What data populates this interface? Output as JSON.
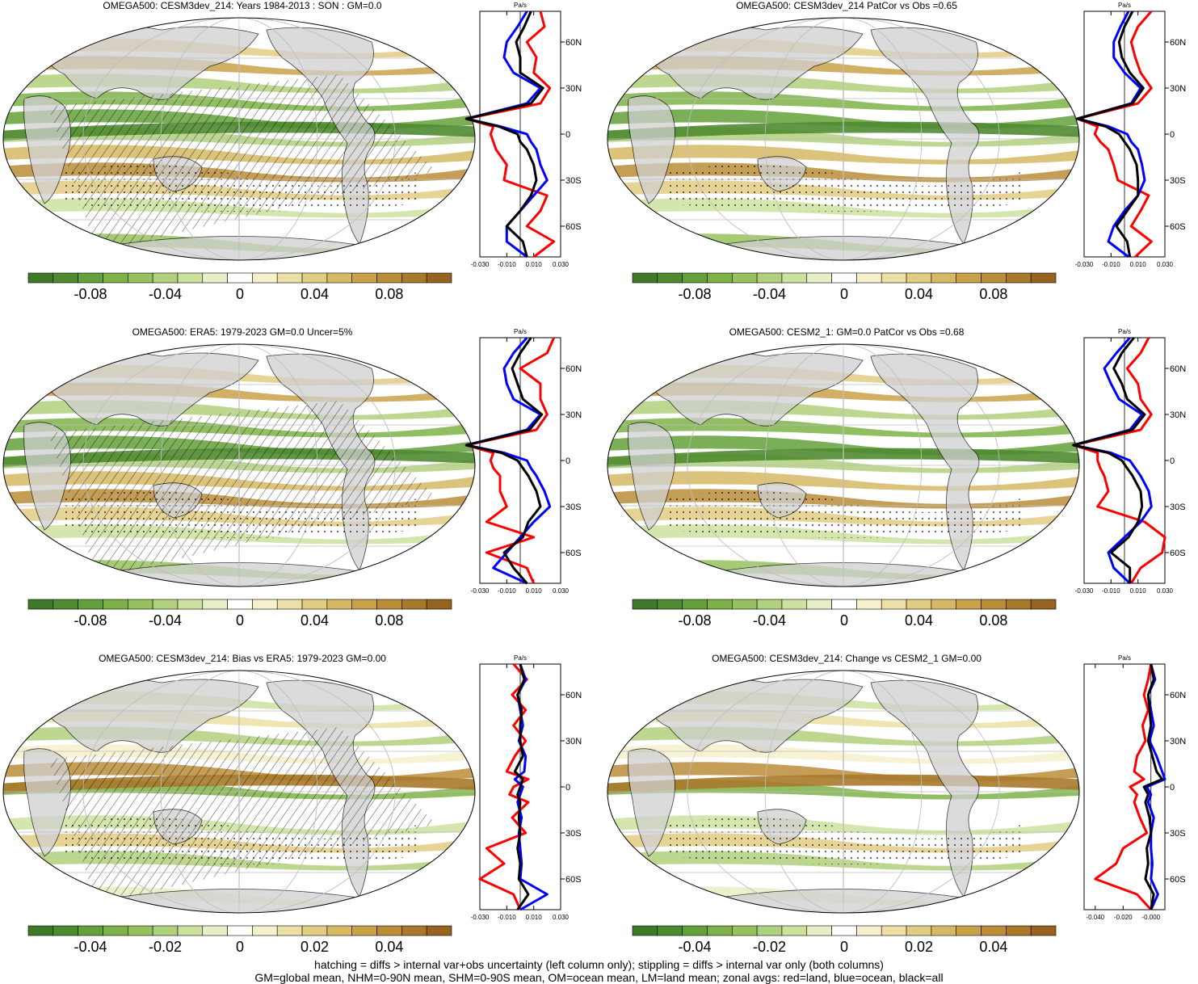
{
  "colors": {
    "ocean": "#ffffff",
    "land": "#cfcfcf",
    "grid": "#bdbdbd",
    "scale": [
      "#3f7a2a",
      "#4f8b31",
      "#63a03a",
      "#7eb148",
      "#97c15e",
      "#b1d07e",
      "#cde19f",
      "#e6efc7",
      "#ffffff",
      "#f6f0cb",
      "#ece0a6",
      "#e1cd84",
      "#d6b865",
      "#c9a24b",
      "#ba8d39",
      "#a9792b",
      "#966320"
    ],
    "land_series": "#ff0000",
    "ocean_series": "#0000ff",
    "all_series": "#000000"
  },
  "footer": {
    "line1": "hatching = diffs > internal var+obs uncertainty (left column only); stippling = diffs > internal var only (both columns)",
    "line2": "GM=global mean, NHM=0-90N mean, SHM=0-90S mean, OM=ocean mean, LM=land mean; zonal avgs: red=land, blue=ocean, black=all"
  },
  "panels": [
    {
      "title": "OMEGA500: CESM3dev_214: Years 1984-2013 : SON : GM=0.0",
      "hatched": true,
      "colorbar_labels": [
        "-0.08",
        "-0.04",
        "0",
        "0.04",
        "0.08"
      ],
      "chart_data": {
        "type": "line",
        "xunit": "Pa/s",
        "xticks": [
          "-0.030",
          "-0.010",
          "0.010",
          "0.030"
        ],
        "yticks": [
          "60N",
          "30N",
          "0",
          "30S",
          "60S"
        ],
        "xlim": [
          -0.03,
          0.03
        ],
        "ylim": [
          -80,
          80
        ],
        "lat": [
          80,
          70,
          60,
          50,
          40,
          30,
          20,
          10,
          5,
          0,
          -5,
          -10,
          -20,
          -30,
          -40,
          -50,
          -60,
          -70,
          -80
        ],
        "series": [
          {
            "color": "red",
            "values": [
              0.015,
              0.018,
              0.005,
              0.012,
              0.01,
              0.022,
              0.015,
              -0.04,
              -0.02,
              -0.022,
              -0.02,
              -0.018,
              -0.01,
              -0.012,
              0.02,
              0.015,
              0.005,
              0.025,
              0.01
            ]
          },
          {
            "color": "blue",
            "values": [
              0.005,
              -0.002,
              -0.01,
              -0.012,
              -0.005,
              0.015,
              0.005,
              -0.04,
              -0.015,
              0.005,
              0.008,
              0.012,
              0.015,
              0.02,
              0.01,
              0.0,
              -0.01,
              -0.01,
              0.005
            ]
          },
          {
            "color": "black",
            "values": [
              0.008,
              0.003,
              -0.003,
              0.0,
              0.0,
              0.017,
              0.008,
              -0.04,
              -0.016,
              -0.002,
              0.0,
              0.005,
              0.01,
              0.012,
              0.008,
              0.0,
              -0.01,
              0.002,
              0.005
            ]
          }
        ]
      }
    },
    {
      "title": "OMEGA500: CESM3dev_214 PatCor vs Obs =0.65",
      "hatched": false,
      "colorbar_labels": [
        "-0.08",
        "-0.04",
        "0",
        "0.04",
        "0.08"
      ],
      "chart_data": {
        "type": "line",
        "xunit": "Pa/s",
        "xticks": [
          "-0.030",
          "-0.010",
          "0.010",
          "0.030"
        ],
        "yticks": [
          "60N",
          "30N",
          "0",
          "30S",
          "60S"
        ],
        "xlim": [
          -0.03,
          0.03
        ],
        "ylim": [
          -80,
          80
        ],
        "lat": [
          80,
          70,
          60,
          50,
          40,
          30,
          20,
          10,
          5,
          0,
          -5,
          -10,
          -20,
          -30,
          -40,
          -50,
          -60,
          -70,
          -80
        ],
        "series": [
          {
            "color": "red",
            "values": [
              0.02,
              0.01,
              0.005,
              0.008,
              0.012,
              0.02,
              0.01,
              -0.035,
              -0.02,
              -0.022,
              -0.018,
              -0.012,
              -0.008,
              -0.005,
              0.018,
              0.012,
              0.005,
              0.02,
              0.008
            ]
          },
          {
            "color": "blue",
            "values": [
              0.003,
              -0.003,
              -0.008,
              -0.008,
              0.0,
              0.012,
              0.005,
              -0.035,
              -0.012,
              0.002,
              0.005,
              0.01,
              0.013,
              0.015,
              0.01,
              0.0,
              -0.008,
              -0.012,
              0.003
            ]
          },
          {
            "color": "black",
            "values": [
              0.006,
              0.0,
              -0.004,
              -0.002,
              0.004,
              0.014,
              0.006,
              -0.035,
              -0.014,
              -0.004,
              0.0,
              0.004,
              0.009,
              0.01,
              0.01,
              0.002,
              -0.006,
              0.002,
              0.004
            ]
          }
        ]
      }
    },
    {
      "title": "OMEGA500: ERA5: 1979-2023 GM=0.0 Uncer=5%",
      "hatched": true,
      "colorbar_labels": [
        "-0.08",
        "-0.04",
        "0",
        "0.04",
        "0.08"
      ],
      "chart_data": {
        "type": "line",
        "xunit": "Pa/s",
        "xticks": [
          "-0.030",
          "-0.010",
          "0.010",
          "0.030"
        ],
        "yticks": [
          "60N",
          "30N",
          "0",
          "30S",
          "60S"
        ],
        "xlim": [
          -0.03,
          0.03
        ],
        "ylim": [
          -80,
          80
        ],
        "lat": [
          80,
          70,
          60,
          50,
          40,
          30,
          20,
          10,
          5,
          0,
          -5,
          -10,
          -20,
          -30,
          -40,
          -50,
          -60,
          -70,
          -80
        ],
        "series": [
          {
            "color": "red",
            "values": [
              0.025,
              0.02,
              0.0,
              0.015,
              0.015,
              0.02,
              0.012,
              -0.04,
              -0.02,
              -0.022,
              -0.02,
              -0.015,
              -0.015,
              -0.01,
              -0.025,
              0.01,
              -0.025,
              0.005,
              0.01
            ]
          },
          {
            "color": "blue",
            "values": [
              0.005,
              -0.005,
              -0.012,
              -0.01,
              -0.005,
              0.015,
              0.005,
              -0.04,
              -0.012,
              0.005,
              0.008,
              0.012,
              0.018,
              0.022,
              0.01,
              0.0,
              -0.01,
              -0.02,
              0.005
            ]
          },
          {
            "color": "black",
            "values": [
              0.008,
              0.0,
              -0.006,
              -0.002,
              0.002,
              0.016,
              0.007,
              -0.04,
              -0.014,
              -0.002,
              0.002,
              0.006,
              0.012,
              0.015,
              0.006,
              0.002,
              -0.012,
              -0.005,
              0.005
            ]
          }
        ]
      }
    },
    {
      "title": "OMEGA500: CESM2_1: GM=0.0 PatCor vs Obs =0.68",
      "hatched": false,
      "colorbar_labels": [
        "-0.08",
        "-0.04",
        "0",
        "0.04",
        "0.08"
      ],
      "chart_data": {
        "type": "line",
        "xunit": "Pa/s",
        "xticks": [
          "-0.030",
          "-0.010",
          "0.010",
          "0.030"
        ],
        "yticks": [
          "60N",
          "30N",
          "0",
          "30S",
          "60S"
        ],
        "xlim": [
          -0.03,
          0.03
        ],
        "ylim": [
          -80,
          80
        ],
        "lat": [
          80,
          70,
          60,
          50,
          40,
          30,
          20,
          10,
          5,
          0,
          -5,
          -10,
          -20,
          -30,
          -40,
          -50,
          -60,
          -70,
          -80
        ],
        "series": [
          {
            "color": "red",
            "values": [
              0.018,
              0.012,
              0.002,
              0.01,
              0.012,
              0.02,
              0.012,
              -0.038,
              -0.02,
              -0.02,
              -0.018,
              -0.015,
              -0.012,
              -0.02,
              0.015,
              0.03,
              0.028,
              0.012,
              0.005
            ]
          },
          {
            "color": "blue",
            "values": [
              0.004,
              -0.006,
              -0.015,
              -0.01,
              -0.004,
              0.013,
              0.004,
              -0.038,
              -0.01,
              0.004,
              0.008,
              0.012,
              0.018,
              0.02,
              0.012,
              0.0,
              -0.012,
              -0.008,
              0.004
            ]
          },
          {
            "color": "black",
            "values": [
              0.007,
              -0.002,
              -0.008,
              -0.002,
              0.002,
              0.015,
              0.006,
              -0.038,
              -0.012,
              -0.002,
              0.002,
              0.006,
              0.012,
              0.013,
              0.01,
              0.003,
              -0.01,
              0.004,
              0.004
            ]
          }
        ]
      }
    },
    {
      "title": "OMEGA500: CESM3dev_214: Bias vs ERA5: 1979-2023  GM=0.00",
      "hatched": true,
      "colorbar_labels": [
        "-0.04",
        "-0.02",
        "0",
        "0.02",
        "0.04"
      ],
      "chart_data": {
        "type": "line",
        "xunit": "Pa/s",
        "xticks": [
          "-0.030",
          "-0.010",
          "0.010",
          "0.030"
        ],
        "yticks": [
          "60N",
          "30N",
          "0",
          "30S",
          "60S"
        ],
        "xlim": [
          -0.03,
          0.03
        ],
        "ylim": [
          -80,
          80
        ],
        "lat": [
          80,
          70,
          60,
          50,
          40,
          30,
          20,
          10,
          5,
          0,
          -5,
          -10,
          -20,
          -30,
          -40,
          -50,
          -60,
          -70,
          -80
        ],
        "series": [
          {
            "color": "red",
            "values": [
              -0.005,
              0.005,
              -0.006,
              0.004,
              -0.005,
              0.004,
              -0.004,
              -0.01,
              0.006,
              -0.005,
              -0.008,
              0.006,
              -0.006,
              0.004,
              -0.025,
              -0.012,
              -0.03,
              -0.005,
              0.0
            ]
          },
          {
            "color": "blue",
            "values": [
              0.0,
              0.004,
              -0.002,
              0.0,
              0.002,
              -0.001,
              0.004,
              0.003,
              -0.004,
              0.002,
              0.0,
              -0.002,
              0.001,
              -0.001,
              0.0,
              0.001,
              0.0,
              0.02,
              0.0
            ]
          },
          {
            "color": "black",
            "values": [
              0.0,
              0.003,
              -0.002,
              0.001,
              0.0,
              0.0,
              0.002,
              -0.004,
              0.002,
              0.0,
              -0.002,
              0.0,
              -0.001,
              0.0,
              -0.002,
              0.0,
              -0.001,
              0.006,
              -0.002
            ]
          }
        ]
      }
    },
    {
      "title": "OMEGA500: CESM3dev_214: Change vs CESM2_1 GM=0.00",
      "hatched": false,
      "colorbar_labels": [
        "-0.04",
        "-0.02",
        "0",
        "0.02",
        "0.04"
      ],
      "chart_data": {
        "type": "line",
        "xunit": "Pa/s",
        "xticks": [
          "-0.040",
          "-0.020",
          "-0.000"
        ],
        "yticks": [
          "60N",
          "30N",
          "0",
          "30S",
          "60S"
        ],
        "xlim": [
          -0.048,
          0.01
        ],
        "ylim": [
          -80,
          80
        ],
        "lat": [
          80,
          70,
          60,
          50,
          40,
          30,
          20,
          10,
          5,
          0,
          -5,
          -10,
          -20,
          -30,
          -40,
          -50,
          -60,
          -70,
          -80
        ],
        "series": [
          {
            "color": "red",
            "values": [
              0.0,
              -0.002,
              -0.005,
              -0.002,
              -0.006,
              -0.004,
              -0.01,
              -0.012,
              -0.005,
              -0.015,
              -0.01,
              -0.012,
              -0.008,
              -0.003,
              -0.02,
              -0.025,
              -0.04,
              -0.01,
              0.0
            ]
          },
          {
            "color": "blue",
            "values": [
              0.0,
              0.003,
              -0.002,
              0.0,
              0.002,
              -0.001,
              0.004,
              0.008,
              0.01,
              -0.003,
              0.0,
              -0.002,
              0.002,
              0.0,
              0.0,
              0.001,
              0.0,
              0.005,
              0.0
            ]
          },
          {
            "color": "black",
            "values": [
              0.0,
              0.002,
              -0.002,
              -0.001,
              0.0,
              -0.002,
              0.001,
              0.004,
              0.008,
              -0.005,
              -0.002,
              -0.004,
              -0.001,
              0.0,
              -0.003,
              -0.002,
              -0.004,
              0.002,
              0.0
            ]
          }
        ]
      }
    }
  ]
}
